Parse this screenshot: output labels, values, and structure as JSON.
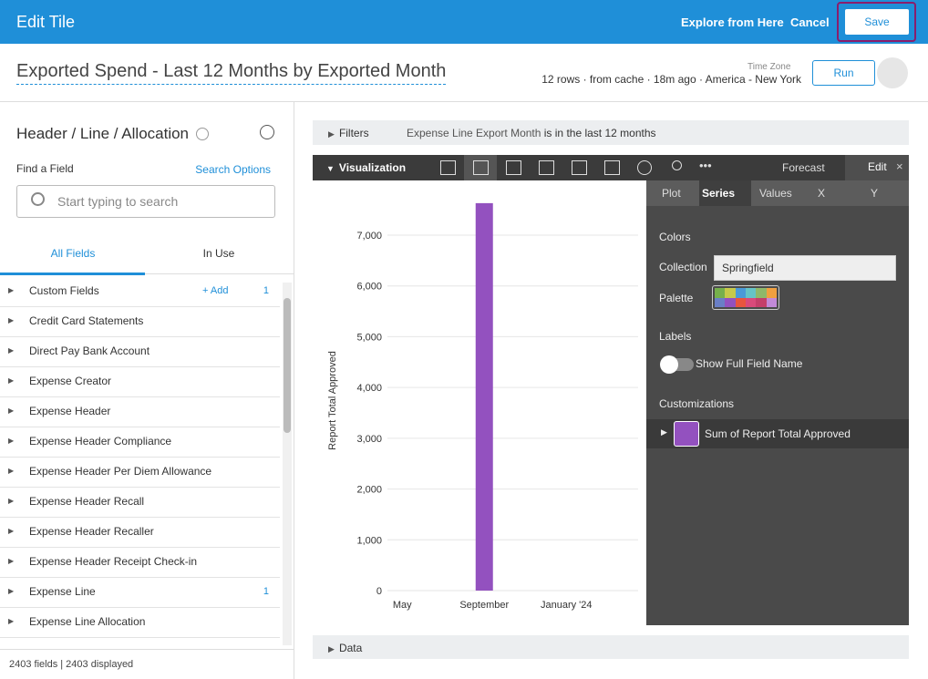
{
  "header": {
    "title": "Edit Tile",
    "explore": "Explore from Here",
    "cancel": "Cancel",
    "save": "Save"
  },
  "query": {
    "title": "Exported Spend - Last 12 Months by Exported Month",
    "time_zone": "Time Zone",
    "status": "12 rows · from cache · 18m ago · America - New York",
    "run": "Run"
  },
  "sidebar": {
    "title": "Header / Line / Allocation",
    "find_label": "Find a Field",
    "search_options": "Search Options",
    "search_placeholder": "Start typing to search",
    "tabs": [
      "All Fields",
      "In Use"
    ],
    "add": "+ Add",
    "fields": [
      {
        "name": "Custom Fields",
        "count": 1
      },
      {
        "name": "Credit Card Statements"
      },
      {
        "name": "Direct Pay Bank Account"
      },
      {
        "name": "Expense Creator"
      },
      {
        "name": "Expense Header"
      },
      {
        "name": "Expense Header Compliance"
      },
      {
        "name": "Expense Header Per Diem Allowance"
      },
      {
        "name": "Expense Header Recall"
      },
      {
        "name": "Expense Header Recaller"
      },
      {
        "name": "Expense Header Receipt Check-in"
      },
      {
        "name": "Expense Line",
        "count": 1
      },
      {
        "name": "Expense Line Allocation"
      }
    ],
    "footer": "2403 fields | 2403 displayed"
  },
  "filters": {
    "label": "Filters",
    "field": "Expense Line Export Month",
    "condition": "is in the last 12 months"
  },
  "toolbar": {
    "label": "Visualization",
    "forecast": "Forecast",
    "edit": "Edit"
  },
  "chart_data": {
    "type": "bar",
    "y_label": "Report Total Approved",
    "categories": [
      "May",
      null,
      null,
      null,
      "September",
      null,
      null,
      null,
      "January '24",
      null,
      null,
      null
    ],
    "values": [
      null,
      null,
      null,
      null,
      7630,
      null,
      null,
      null,
      null,
      null,
      null,
      null
    ],
    "color": "#9351bf",
    "ylim": [
      0,
      7700
    ],
    "yticks": [
      0,
      {
        "value": 1000,
        "label": "1,000"
      },
      {
        "value": 2000,
        "label": "2,000"
      },
      {
        "value": 3000,
        "label": "3,000"
      },
      {
        "value": 4000,
        "label": "4,000"
      },
      {
        "value": 5000,
        "label": "5,000"
      },
      {
        "value": 6000,
        "label": "6,000"
      },
      {
        "value": 7000,
        "label": "7,000"
      }
    ],
    "grid": true
  },
  "edit_panel": {
    "tabs": [
      "Plot",
      "Series",
      "Values",
      "X",
      "Y"
    ],
    "colors": "Colors",
    "collection_label": "Collection",
    "collection": "Springfield",
    "palette": "Palette",
    "labels": "Labels",
    "show_full": "Show Full Field Name",
    "customizations": "Customizations",
    "series_name": "Sum of Report Total Approved"
  },
  "data_section": "Data"
}
